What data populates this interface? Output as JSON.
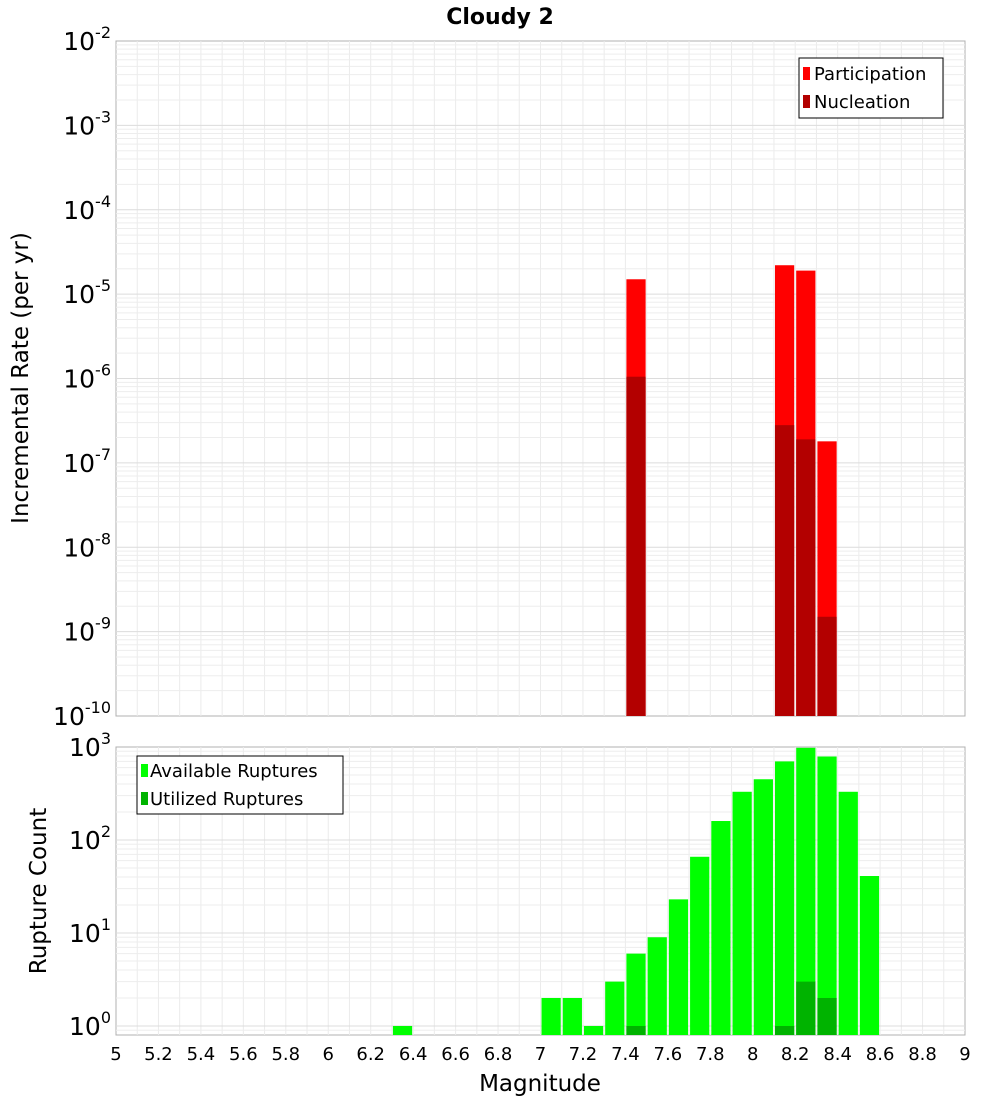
{
  "title": "Cloudy 2",
  "colors": {
    "participation": "#ff0000",
    "nucleation": "#b30000",
    "available": "#00ff00",
    "utilized": "#00b300"
  },
  "chart_data": [
    {
      "type": "bar",
      "title": "Cloudy 2",
      "xlabel": "Magnitude",
      "ylabel": "Incremental Rate (per yr)",
      "yscale": "log",
      "ylim": [
        1e-10,
        0.01
      ],
      "xlim": [
        5,
        9
      ],
      "bin_width": 0.1,
      "grid": true,
      "legend_position": "top-right",
      "x_ticks": [
        "5",
        "5.2",
        "5.4",
        "5.6",
        "5.8",
        "6",
        "6.2",
        "6.4",
        "6.6",
        "6.8",
        "7",
        "7.2",
        "7.4",
        "7.6",
        "7.8",
        "8",
        "8.2",
        "8.4",
        "8.6",
        "8.8",
        "9"
      ],
      "y_ticks": [
        {
          "base": "10",
          "exp": "-10"
        },
        {
          "base": "10",
          "exp": "-9"
        },
        {
          "base": "10",
          "exp": "-8"
        },
        {
          "base": "10",
          "exp": "-7"
        },
        {
          "base": "10",
          "exp": "-6"
        },
        {
          "base": "10",
          "exp": "-5"
        },
        {
          "base": "10",
          "exp": "-4"
        },
        {
          "base": "10",
          "exp": "-3"
        },
        {
          "base": "10",
          "exp": "-2"
        }
      ],
      "series": [
        {
          "name": "Participation",
          "x": [
            7.45,
            8.15,
            8.25,
            8.35
          ],
          "values": [
            1.5e-05,
            2.2e-05,
            1.9e-05,
            1.8e-07
          ]
        },
        {
          "name": "Nucleation",
          "x": [
            7.45,
            8.15,
            8.25,
            8.35
          ],
          "values": [
            1.05e-06,
            2.8e-07,
            1.9e-07,
            1.5e-09
          ]
        }
      ]
    },
    {
      "type": "bar",
      "xlabel": "Magnitude",
      "ylabel": "Rupture Count",
      "yscale": "log",
      "ylim": [
        0.8,
        1000
      ],
      "xlim": [
        5,
        9
      ],
      "bin_width": 0.1,
      "grid": true,
      "legend_position": "top-left",
      "y_ticks": [
        {
          "base": "10",
          "exp": "0"
        },
        {
          "base": "10",
          "exp": "1"
        },
        {
          "base": "10",
          "exp": "2"
        },
        {
          "base": "10",
          "exp": "3"
        }
      ],
      "series": [
        {
          "name": "Available Ruptures",
          "x": [
            6.35,
            7.05,
            7.15,
            7.25,
            7.35,
            7.45,
            7.55,
            7.65,
            7.75,
            7.85,
            7.95,
            8.05,
            8.15,
            8.25,
            8.35,
            8.45,
            8.55
          ],
          "values": [
            1,
            2,
            2,
            1,
            3,
            6,
            9,
            23,
            66,
            160,
            330,
            450,
            700,
            980,
            790,
            330,
            41
          ]
        },
        {
          "name": "Utilized Ruptures",
          "x": [
            7.45,
            8.15,
            8.25,
            8.35
          ],
          "values": [
            1,
            1,
            3,
            2
          ]
        }
      ]
    }
  ]
}
